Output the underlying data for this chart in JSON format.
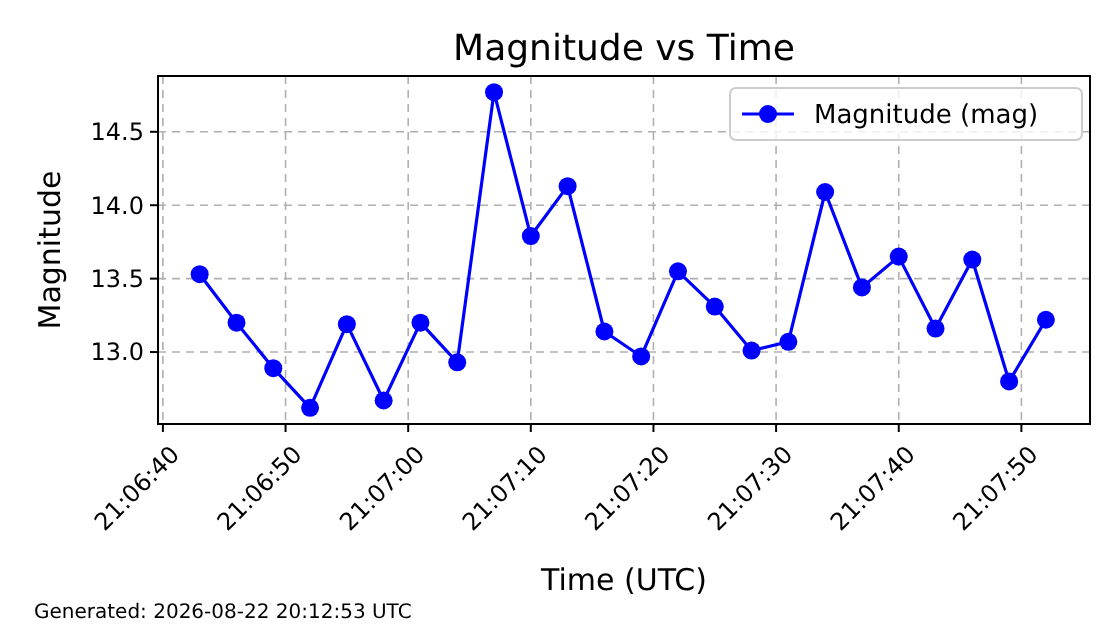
{
  "chart_data": {
    "type": "line",
    "title": "Magnitude vs Time",
    "xlabel": "Time (UTC)",
    "ylabel": "Magnitude",
    "annotations": [
      "Generated: 2026-08-22 20:12:53 UTC"
    ],
    "x": [
      21.111944,
      21.112778,
      21.113611,
      21.114444,
      21.115278,
      21.116111,
      21.116944,
      21.117778,
      21.118611,
      21.119444,
      21.120278,
      21.121111,
      21.121944,
      21.122778,
      21.123611,
      21.124444,
      21.125278,
      21.126111,
      21.126944,
      21.127778,
      21.128611,
      21.129444,
      21.130278,
      21.131111
    ],
    "series": [
      {
        "name": "Magnitude (mag)",
        "color": "#0000ff",
        "values": [
          13.53,
          13.2,
          12.89,
          12.62,
          13.19,
          12.67,
          13.2,
          12.93,
          14.77,
          13.79,
          14.13,
          13.14,
          12.97,
          13.55,
          13.31,
          13.01,
          13.07,
          14.09,
          13.44,
          13.65,
          13.16,
          13.63,
          12.8,
          13.22
        ]
      }
    ],
    "xlim": [
      21.111,
      21.13211
    ],
    "xticks": [
      {
        "value": 21.111111,
        "label": "21:06:40"
      },
      {
        "value": 21.113889,
        "label": "21:06:50"
      },
      {
        "value": 21.116667,
        "label": "21:07:00"
      },
      {
        "value": 21.119444,
        "label": "21:07:10"
      },
      {
        "value": 21.122222,
        "label": "21:07:20"
      },
      {
        "value": 21.125,
        "label": "21:07:30"
      },
      {
        "value": 21.127778,
        "label": "21:07:40"
      },
      {
        "value": 21.130556,
        "label": "21:07:50"
      }
    ],
    "ylim": [
      12.51,
      14.88
    ],
    "yticks": [
      {
        "value": 13,
        "label": "13.0"
      },
      {
        "value": 13.5,
        "label": "13.5"
      },
      {
        "value": 14,
        "label": "14.0"
      },
      {
        "value": 14.5,
        "label": "14.5"
      }
    ],
    "grid": true,
    "legend": "top right",
    "marker": "circle",
    "line_style": "solid"
  }
}
